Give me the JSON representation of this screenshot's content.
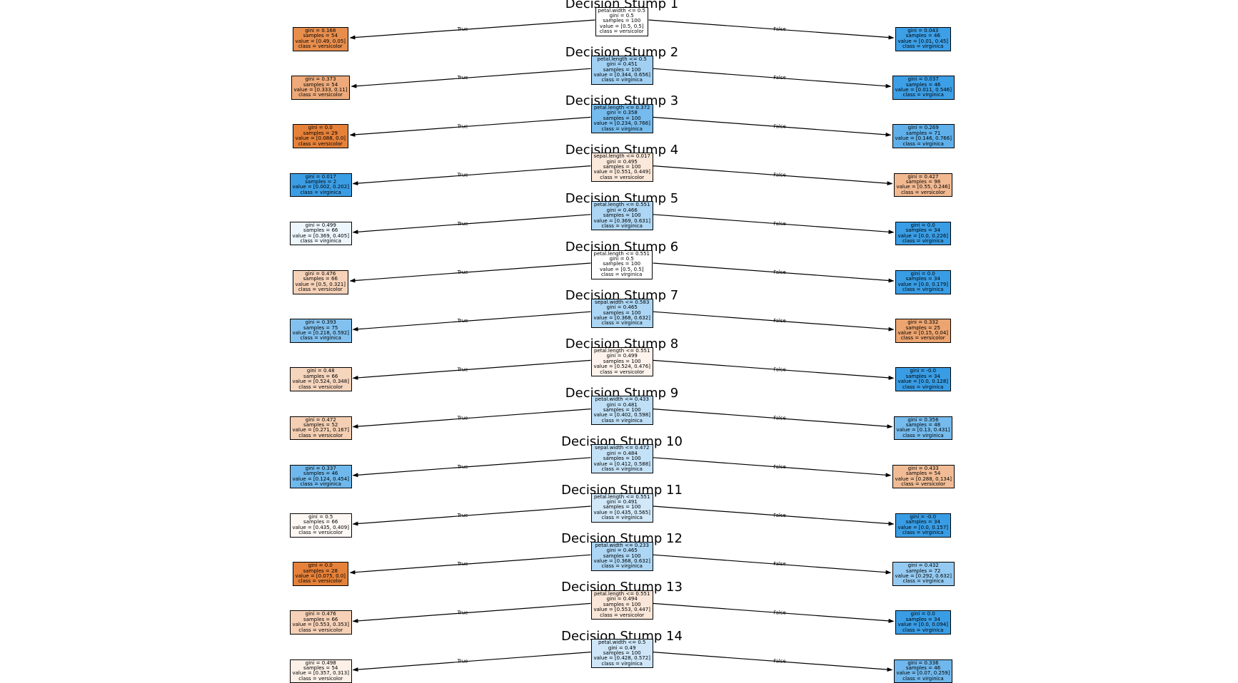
{
  "figure": {
    "true_label": "True",
    "false_label": "False"
  },
  "stumps": [
    {
      "title": "Decision Stump 1",
      "root": {
        "lines": [
          "petal.width <= 0.5",
          "gini = 0.5",
          "samples = 100",
          "value = [0.5, 0.5]",
          "class = versicolor"
        ],
        "color": "#ffffff"
      },
      "left": {
        "lines": [
          "gini = 0.168",
          "samples = 54",
          "value = [0.49, 0.05]",
          "class = versicolor"
        ],
        "color": "#e88e4d"
      },
      "right": {
        "lines": [
          "gini = 0.043",
          "samples = 46",
          "value = [0.01, 0.45]",
          "class = virginica"
        ],
        "color": "#3d9fe6"
      }
    },
    {
      "title": "Decision Stump 2",
      "root": {
        "lines": [
          "petal.length <= 0.5",
          "gini = 0.451",
          "samples = 100",
          "value = [0.344, 0.656]",
          "class = virginica"
        ],
        "color": "#a1d0f3"
      },
      "left": {
        "lines": [
          "gini = 0.373",
          "samples = 54",
          "value = [0.333, 0.11]",
          "class = versicolor"
        ],
        "color": "#eeaa7a"
      },
      "right": {
        "lines": [
          "gini = 0.037",
          "samples = 46",
          "value = [0.011, 0.546]",
          "class = virginica"
        ],
        "color": "#3d9fe6"
      }
    },
    {
      "title": "Decision Stump 3",
      "root": {
        "lines": [
          "petal.length <= 0.372",
          "gini = 0.358",
          "samples = 100",
          "value = [0.234, 0.766]",
          "class = virginica"
        ],
        "color": "#76bbed"
      },
      "left": {
        "lines": [
          "gini = 0.0",
          "samples = 29",
          "value = [0.088, 0.0]",
          "class = versicolor"
        ],
        "color": "#e58139"
      },
      "right": {
        "lines": [
          "gini = 0.269",
          "samples = 71",
          "value = [0.146, 0.766]",
          "class = virginica"
        ],
        "color": "#5fb0ea"
      }
    },
    {
      "title": "Decision Stump 4",
      "root": {
        "lines": [
          "sepal.length <= 0.017",
          "gini = 0.495",
          "samples = 100",
          "value = [0.551, 0.449]",
          "class = versicolor"
        ],
        "color": "#fae8da"
      },
      "left": {
        "lines": [
          "gini = 0.017",
          "samples = 2",
          "value = [0.002, 0.202]",
          "class = virginica"
        ],
        "color": "#3b9ee5"
      },
      "right": {
        "lines": [
          "gini = 0.427",
          "samples = 98",
          "value = [0.55, 0.246]",
          "class = versicolor"
        ],
        "color": "#f2b991"
      }
    },
    {
      "title": "Decision Stump 5",
      "root": {
        "lines": [
          "petal.length <= 0.551",
          "gini = 0.466",
          "samples = 100",
          "value = [0.369, 0.631]",
          "class = virginica"
        ],
        "color": "#add6f4"
      },
      "left": {
        "lines": [
          "gini = 0.499",
          "samples = 66",
          "value = [0.369, 0.405]",
          "class = virginica"
        ],
        "color": "#edf6fd"
      },
      "right": {
        "lines": [
          "gini = 0.0",
          "samples = 34",
          "value = [0.0, 0.226]",
          "class = virginica"
        ],
        "color": "#399de5"
      }
    },
    {
      "title": "Decision Stump 6",
      "root": {
        "lines": [
          "petal.length <= 0.551",
          "gini = 0.5",
          "samples = 100",
          "value = [0.5, 0.5]",
          "class = virginica"
        ],
        "color": "#ffffff"
      },
      "left": {
        "lines": [
          "gini = 0.476",
          "samples = 66",
          "value = [0.5, 0.321]",
          "class = versicolor"
        ],
        "color": "#f6d2b8"
      },
      "right": {
        "lines": [
          "gini = 0.0",
          "samples = 34",
          "value = [0.0, 0.179]",
          "class = virginica"
        ],
        "color": "#399de5"
      }
    },
    {
      "title": "Decision Stump 7",
      "root": {
        "lines": [
          "sepal.width <= 0.583",
          "gini = 0.465",
          "samples = 100",
          "value = [0.368, 0.632]",
          "class = virginica"
        ],
        "color": "#acd6f4"
      },
      "left": {
        "lines": [
          "gini = 0.393",
          "samples = 75",
          "value = [0.218, 0.592]",
          "class = virginica"
        ],
        "color": "#82c1ef"
      },
      "right": {
        "lines": [
          "gini = 0.332",
          "samples = 25",
          "value = [0.15, 0.04]",
          "class = versicolor"
        ],
        "color": "#eca470"
      }
    },
    {
      "title": "Decision Stump 8",
      "root": {
        "lines": [
          "petal.length <= 0.551",
          "gini = 0.499",
          "samples = 100",
          "value = [0.524, 0.476]",
          "class = versicolor"
        ],
        "color": "#fdf3ec"
      },
      "left": {
        "lines": [
          "gini = 0.48",
          "samples = 66",
          "value = [0.524, 0.348]",
          "class = versicolor"
        ],
        "color": "#f6d5bd"
      },
      "right": {
        "lines": [
          "gini = -0.0",
          "samples = 34",
          "value = [0.0, 0.128]",
          "class = virginica"
        ],
        "color": "#399de5"
      }
    },
    {
      "title": "Decision Stump 9",
      "root": {
        "lines": [
          "petal.width <= 0.433",
          "gini = 0.481",
          "samples = 100",
          "value = [0.402, 0.598]",
          "class = virginica"
        ],
        "color": "#bedff6"
      },
      "left": {
        "lines": [
          "gini = 0.472",
          "samples = 52",
          "value = [0.271, 0.167]",
          "class = versicolor"
        ],
        "color": "#f5cfb3"
      },
      "right": {
        "lines": [
          "gini = 0.356",
          "samples = 48",
          "value = [0.13, 0.431]",
          "class = virginica"
        ],
        "color": "#75bbed"
      }
    },
    {
      "title": "Decision Stump 10",
      "root": {
        "lines": [
          "sepal.width <= 0.472",
          "gini = 0.484",
          "samples = 100",
          "value = [0.412, 0.588]",
          "class = virginica"
        ],
        "color": "#c4e2f7"
      },
      "left": {
        "lines": [
          "gini = 0.337",
          "samples = 46",
          "value = [0.124, 0.454]",
          "class = virginica"
        ],
        "color": "#6fb8ec"
      },
      "right": {
        "lines": [
          "gini = 0.433",
          "samples = 54",
          "value = [0.288, 0.134]",
          "class = versicolor"
        ],
        "color": "#f1bc95"
      }
    },
    {
      "title": "Decision Stump 11",
      "root": {
        "lines": [
          "petal.length <= 0.551",
          "gini = 0.491",
          "samples = 100",
          "value = [0.435, 0.565]",
          "class = virginica"
        ],
        "color": "#d1e8f9"
      },
      "left": {
        "lines": [
          "gini = 0.5",
          "samples = 66",
          "value = [0.435, 0.409]",
          "class = versicolor"
        ],
        "color": "#fef8f4"
      },
      "right": {
        "lines": [
          "gini = -0.0",
          "samples = 34",
          "value = [0.0, 0.157]",
          "class = virginica"
        ],
        "color": "#399de5"
      }
    },
    {
      "title": "Decision Stump 12",
      "root": {
        "lines": [
          "petal.width <= 0.233",
          "gini = 0.465",
          "samples = 100",
          "value = [0.368, 0.632]",
          "class = virginica"
        ],
        "color": "#acd6f4"
      },
      "left": {
        "lines": [
          "gini = 0.0",
          "samples = 28",
          "value = [0.075, 0.0]",
          "class = versicolor"
        ],
        "color": "#e58139"
      },
      "right": {
        "lines": [
          "gini = 0.432",
          "samples = 72",
          "value = [0.292, 0.632]",
          "class = virginica"
        ],
        "color": "#94caf1"
      }
    },
    {
      "title": "Decision Stump 13",
      "root": {
        "lines": [
          "petal.length <= 0.551",
          "gini = 0.494",
          "samples = 100",
          "value = [0.553, 0.447]",
          "class = versicolor"
        ],
        "color": "#fae7d9"
      },
      "left": {
        "lines": [
          "gini = 0.476",
          "samples = 66",
          "value = [0.553, 0.353]",
          "class = versicolor"
        ],
        "color": "#f6d1b7"
      },
      "right": {
        "lines": [
          "gini = 0.0",
          "samples = 34",
          "value = [0.0, 0.094]",
          "class = virginica"
        ],
        "color": "#399de5"
      }
    },
    {
      "title": "Decision Stump 14",
      "root": {
        "lines": [
          "petal.width <= 0.5",
          "gini = 0.49",
          "samples = 100",
          "value = [0.428, 0.572]",
          "class = virginica"
        ],
        "color": "#cee6f8"
      },
      "left": {
        "lines": [
          "gini = 0.498",
          "samples = 54",
          "value = [0.357, 0.313]",
          "class = versicolor"
        ],
        "color": "#fcf0e7"
      },
      "right": {
        "lines": [
          "gini = 0.336",
          "samples = 46",
          "value = [0.07, 0.259]",
          "class = virginica"
        ],
        "color": "#6fb7ec"
      }
    }
  ]
}
